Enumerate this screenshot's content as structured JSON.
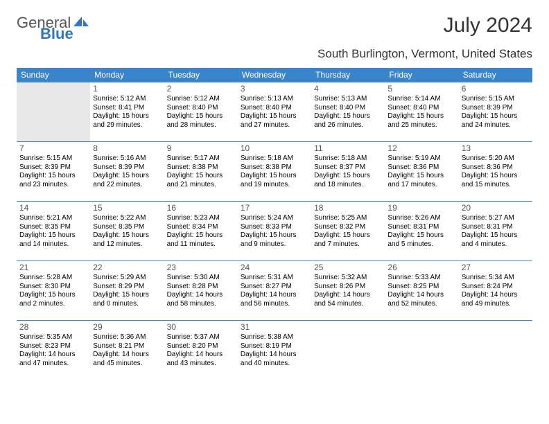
{
  "logo": {
    "general": "General",
    "blue": "Blue"
  },
  "title": "July 2024",
  "location": "South Burlington, Vermont, United States",
  "weekdays": [
    "Sunday",
    "Monday",
    "Tuesday",
    "Wednesday",
    "Thursday",
    "Friday",
    "Saturday"
  ],
  "header_bg": "#3a84c9",
  "header_fg": "#ffffff",
  "border_color": "#3a84c9",
  "gray_bg": "#e8e8e8",
  "days": {
    "1": {
      "sunrise": "5:12 AM",
      "sunset": "8:41 PM",
      "daylight": "15 hours and 29 minutes."
    },
    "2": {
      "sunrise": "5:12 AM",
      "sunset": "8:40 PM",
      "daylight": "15 hours and 28 minutes."
    },
    "3": {
      "sunrise": "5:13 AM",
      "sunset": "8:40 PM",
      "daylight": "15 hours and 27 minutes."
    },
    "4": {
      "sunrise": "5:13 AM",
      "sunset": "8:40 PM",
      "daylight": "15 hours and 26 minutes."
    },
    "5": {
      "sunrise": "5:14 AM",
      "sunset": "8:40 PM",
      "daylight": "15 hours and 25 minutes."
    },
    "6": {
      "sunrise": "5:15 AM",
      "sunset": "8:39 PM",
      "daylight": "15 hours and 24 minutes."
    },
    "7": {
      "sunrise": "5:15 AM",
      "sunset": "8:39 PM",
      "daylight": "15 hours and 23 minutes."
    },
    "8": {
      "sunrise": "5:16 AM",
      "sunset": "8:39 PM",
      "daylight": "15 hours and 22 minutes."
    },
    "9": {
      "sunrise": "5:17 AM",
      "sunset": "8:38 PM",
      "daylight": "15 hours and 21 minutes."
    },
    "10": {
      "sunrise": "5:18 AM",
      "sunset": "8:38 PM",
      "daylight": "15 hours and 19 minutes."
    },
    "11": {
      "sunrise": "5:18 AM",
      "sunset": "8:37 PM",
      "daylight": "15 hours and 18 minutes."
    },
    "12": {
      "sunrise": "5:19 AM",
      "sunset": "8:36 PM",
      "daylight": "15 hours and 17 minutes."
    },
    "13": {
      "sunrise": "5:20 AM",
      "sunset": "8:36 PM",
      "daylight": "15 hours and 15 minutes."
    },
    "14": {
      "sunrise": "5:21 AM",
      "sunset": "8:35 PM",
      "daylight": "15 hours and 14 minutes."
    },
    "15": {
      "sunrise": "5:22 AM",
      "sunset": "8:35 PM",
      "daylight": "15 hours and 12 minutes."
    },
    "16": {
      "sunrise": "5:23 AM",
      "sunset": "8:34 PM",
      "daylight": "15 hours and 11 minutes."
    },
    "17": {
      "sunrise": "5:24 AM",
      "sunset": "8:33 PM",
      "daylight": "15 hours and 9 minutes."
    },
    "18": {
      "sunrise": "5:25 AM",
      "sunset": "8:32 PM",
      "daylight": "15 hours and 7 minutes."
    },
    "19": {
      "sunrise": "5:26 AM",
      "sunset": "8:31 PM",
      "daylight": "15 hours and 5 minutes."
    },
    "20": {
      "sunrise": "5:27 AM",
      "sunset": "8:31 PM",
      "daylight": "15 hours and 4 minutes."
    },
    "21": {
      "sunrise": "5:28 AM",
      "sunset": "8:30 PM",
      "daylight": "15 hours and 2 minutes."
    },
    "22": {
      "sunrise": "5:29 AM",
      "sunset": "8:29 PM",
      "daylight": "15 hours and 0 minutes."
    },
    "23": {
      "sunrise": "5:30 AM",
      "sunset": "8:28 PM",
      "daylight": "14 hours and 58 minutes."
    },
    "24": {
      "sunrise": "5:31 AM",
      "sunset": "8:27 PM",
      "daylight": "14 hours and 56 minutes."
    },
    "25": {
      "sunrise": "5:32 AM",
      "sunset": "8:26 PM",
      "daylight": "14 hours and 54 minutes."
    },
    "26": {
      "sunrise": "5:33 AM",
      "sunset": "8:25 PM",
      "daylight": "14 hours and 52 minutes."
    },
    "27": {
      "sunrise": "5:34 AM",
      "sunset": "8:24 PM",
      "daylight": "14 hours and 49 minutes."
    },
    "28": {
      "sunrise": "5:35 AM",
      "sunset": "8:23 PM",
      "daylight": "14 hours and 47 minutes."
    },
    "29": {
      "sunrise": "5:36 AM",
      "sunset": "8:21 PM",
      "daylight": "14 hours and 45 minutes."
    },
    "30": {
      "sunrise": "5:37 AM",
      "sunset": "8:20 PM",
      "daylight": "14 hours and 43 minutes."
    },
    "31": {
      "sunrise": "5:38 AM",
      "sunset": "8:19 PM",
      "daylight": "14 hours and 40 minutes."
    }
  },
  "layout": [
    [
      null,
      1,
      2,
      3,
      4,
      5,
      6
    ],
    [
      7,
      8,
      9,
      10,
      11,
      12,
      13
    ],
    [
      14,
      15,
      16,
      17,
      18,
      19,
      20
    ],
    [
      21,
      22,
      23,
      24,
      25,
      26,
      27
    ],
    [
      28,
      29,
      30,
      31,
      null,
      null,
      null
    ]
  ],
  "labels": {
    "sunrise": "Sunrise:",
    "sunset": "Sunset:",
    "daylight_prefix": "Daylight:"
  }
}
